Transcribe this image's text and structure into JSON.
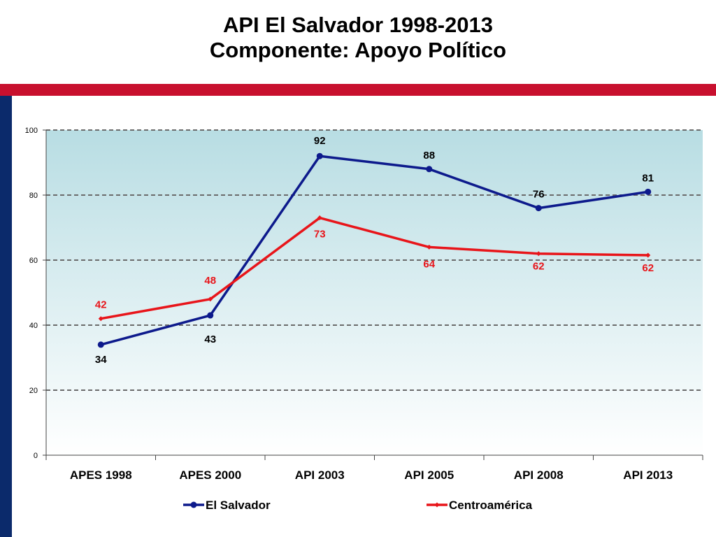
{
  "title": {
    "line1": "API El Salvador 1998-2013",
    "line2": "Componente: Apoyo Político"
  },
  "colors": {
    "band": "#c8102e",
    "sidebar": "#0b2a6b",
    "plot_top": "#b8dde3",
    "plot_bottom": "#ffffff"
  },
  "chart_data": {
    "type": "line",
    "categories": [
      "APES 1998",
      "APES 2000",
      "API 2003",
      "API 2005",
      "API 2008",
      "API 2013"
    ],
    "ylim": [
      0,
      100
    ],
    "yticks": [
      0,
      20,
      40,
      60,
      80,
      100
    ],
    "grid": true,
    "legend": "bottom",
    "series": [
      {
        "name": "El Salvador",
        "color": "#0d1a8c",
        "marker": "circle",
        "values": [
          34,
          43,
          92,
          88,
          76,
          81
        ],
        "labels": [
          "34",
          "43",
          "92",
          "88",
          "76",
          "81"
        ]
      },
      {
        "name": "Centroamérica",
        "color": "#e8151a",
        "marker": "diamond",
        "values": [
          42,
          48,
          73,
          64,
          62,
          61.5
        ],
        "labels": [
          "42",
          "48",
          "73",
          "64",
          "62",
          "62"
        ]
      }
    ]
  }
}
